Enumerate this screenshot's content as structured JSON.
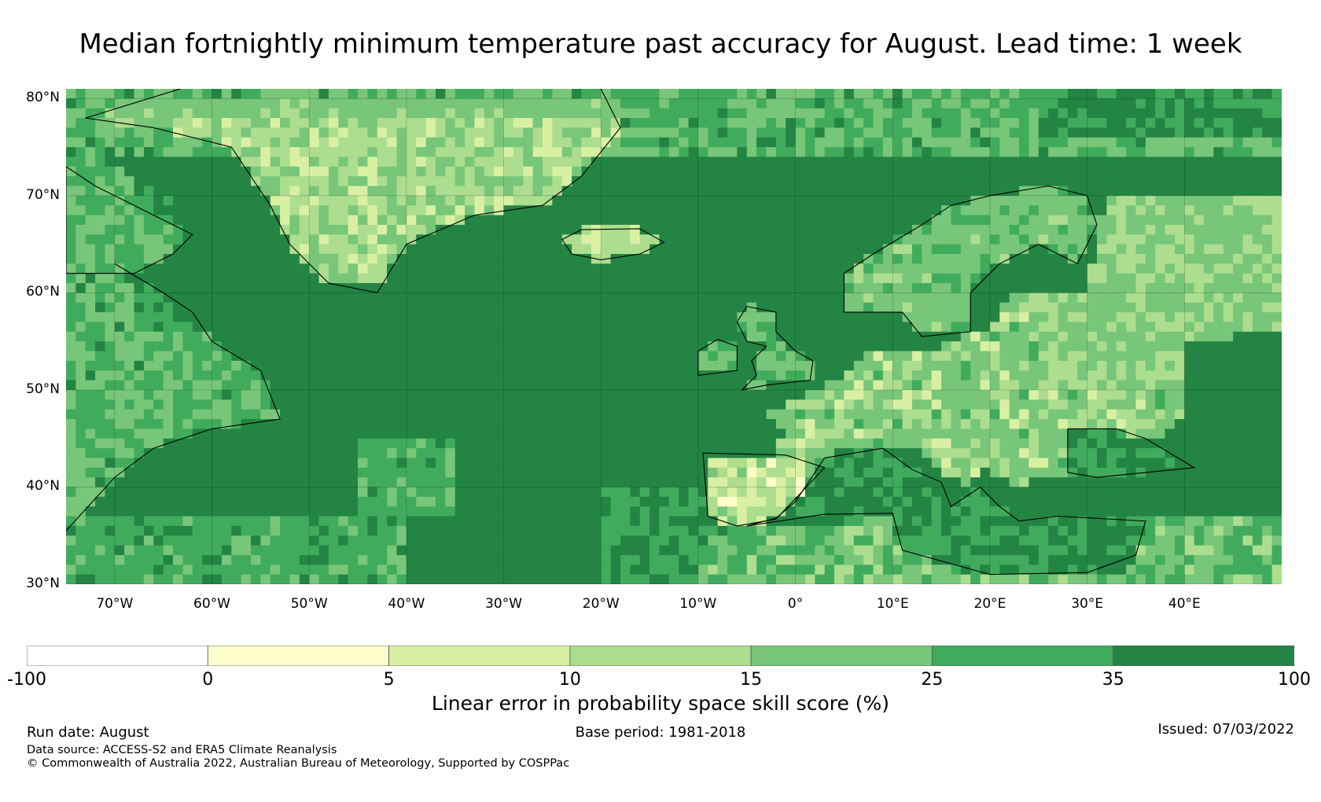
{
  "title": "Median fortnightly minimum temperature past accuracy for August. Lead time: 1 week",
  "map": {
    "lon_range": [
      -75,
      50
    ],
    "lat_range": [
      30,
      81
    ],
    "lat_ticks": [
      {
        "value": 80,
        "label": "80°N"
      },
      {
        "value": 70,
        "label": "70°N"
      },
      {
        "value": 60,
        "label": "60°N"
      },
      {
        "value": 50,
        "label": "50°N"
      },
      {
        "value": 40,
        "label": "40°N"
      },
      {
        "value": 30,
        "label": "30°N"
      }
    ],
    "lon_ticks": [
      {
        "value": -70,
        "label": "70°W"
      },
      {
        "value": -60,
        "label": "60°W"
      },
      {
        "value": -50,
        "label": "50°W"
      },
      {
        "value": -40,
        "label": "40°W"
      },
      {
        "value": -30,
        "label": "30°W"
      },
      {
        "value": -20,
        "label": "20°W"
      },
      {
        "value": -10,
        "label": "10°W"
      },
      {
        "value": 0,
        "label": "0°"
      },
      {
        "value": 10,
        "label": "10°E"
      },
      {
        "value": 20,
        "label": "20°E"
      },
      {
        "value": 30,
        "label": "30°E"
      },
      {
        "value": 40,
        "label": "40°E"
      }
    ]
  },
  "colorbar": {
    "label": "Linear error in probability space skill score (%)",
    "ticks": [
      "-100",
      "0",
      "5",
      "10",
      "15",
      "25",
      "35",
      "100"
    ],
    "colors": [
      "#ffffff",
      "#ffffcc",
      "#d9f0a3",
      "#addd8e",
      "#78c679",
      "#41ab5d",
      "#238443"
    ]
  },
  "footer": {
    "run_date": "Run date: August",
    "base_period": "Base period: 1981-2018",
    "issued": "Issued: 07/03/2022",
    "data_source": "Data source: ACCESS-S2 and ERA5 Climate Reanalysis",
    "copyright": "© Commonwealth of Australia 2022, Australian Bureau of Meteorology, Supported by COSPPac"
  }
}
